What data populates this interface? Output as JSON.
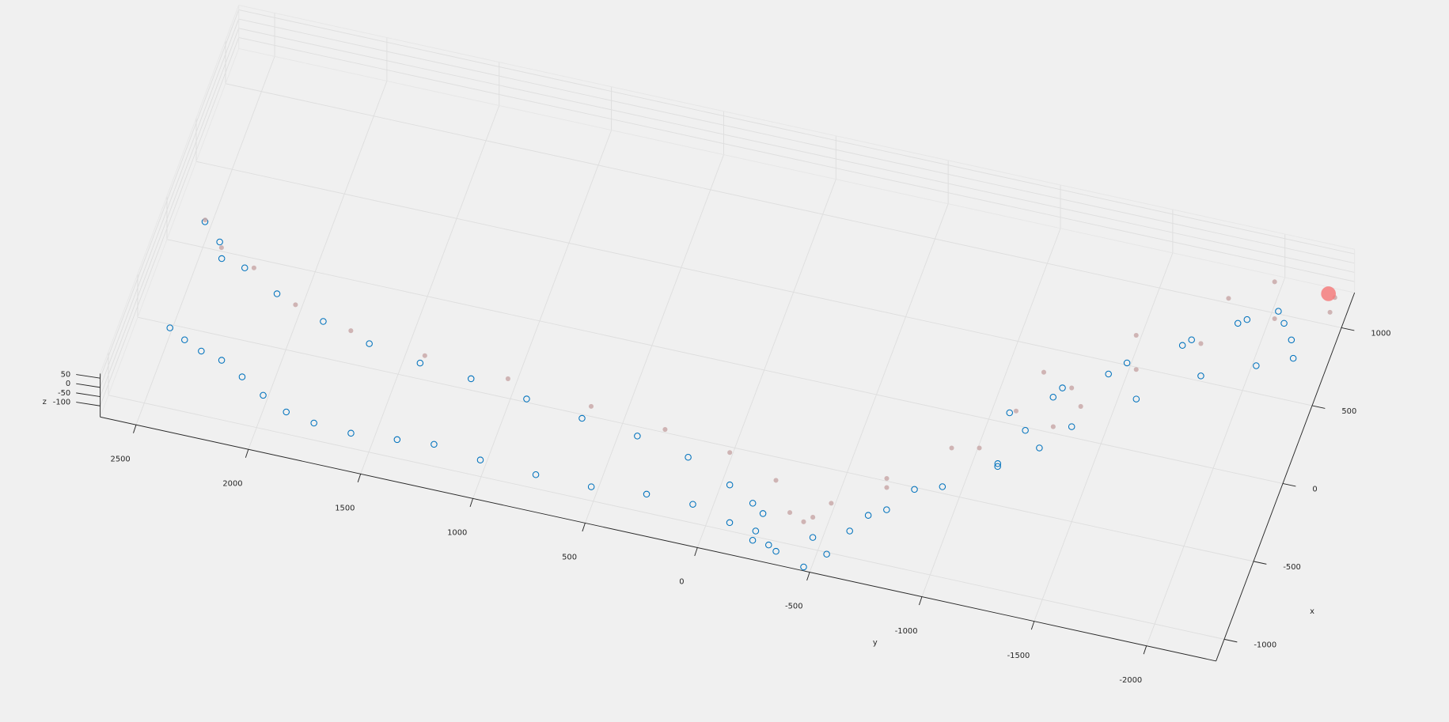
{
  "chart_data": {
    "type": "scatter3",
    "xlabel": "x",
    "ylabel": "y",
    "zlabel": "z",
    "xlim": [
      -1140,
      1225
    ],
    "ylim": [
      -2310,
      2660
    ],
    "zlim": [
      -160,
      75
    ],
    "xticks": [
      -1000,
      -500,
      0,
      500,
      1000
    ],
    "yticks": [
      -2000,
      -1500,
      -1000,
      -500,
      0,
      500,
      1000,
      1500,
      2000,
      2500
    ],
    "zticks": [
      -100,
      -50,
      0,
      50
    ],
    "grid": true,
    "series": [
      {
        "color": "#0072bd",
        "filled": false,
        "marker_size": 3.2,
        "x": [
          -532,
          -584,
          -629,
          -657,
          -729,
          -811,
          -880,
          -910,
          -922,
          -900,
          -880,
          -913,
          -928,
          -928,
          -900,
          -900,
          -961,
          -1036,
          -1071,
          -1128,
          -1022,
          -855,
          -681,
          -472,
          -263,
          52,
          300,
          521,
          653,
          745,
          852,
          941,
          1005,
          881,
          678,
          412,
          203,
          54,
          -30,
          -116,
          -280,
          -524,
          -738,
          -941,
          -1043,
          -977,
          -864,
          143,
          42,
          -54,
          -79,
          -191,
          -295,
          -367,
          -416,
          -443,
          -491,
          -534,
          -567,
          -627,
          -737,
          -816,
          270,
          502,
          723,
          915
        ],
        "y": [
          2508,
          2429,
          2343,
          2245,
          2135,
          2020,
          1899,
          1768,
          1600,
          1400,
          1241,
          1026,
          775,
          528,
          289,
          83,
          -97,
          -219,
          -332,
          -470,
          -545,
          -604,
          -723,
          -917,
          -1109,
          -1356,
          -1579,
          -1809,
          -2021,
          -2162,
          -2126,
          -2070,
          -2028,
          -1880,
          -1686,
          -1426,
          -1234,
          -1079,
          -1171,
          -1256,
          -1113,
          -806,
          -656,
          -462,
          -292,
          -217,
          -220,
          2528,
          2436,
          2402,
          2293,
          2120,
          1887,
          1663,
          1424,
          1190,
          930,
          672,
          417,
          175,
          -39,
          -162,
          -1258,
          -1485,
          -1715,
          -1912
        ],
        "z": [
          -150,
          -150,
          -150,
          -150,
          -150,
          -150,
          -150,
          -150,
          -150,
          -150,
          -150,
          -150,
          -150,
          -150,
          -150,
          -150,
          -150,
          -150,
          -150,
          -150,
          -150,
          -150,
          -150,
          -150,
          -150,
          -150,
          -150,
          -150,
          -150,
          -150,
          -150,
          -150,
          -150,
          -150,
          -150,
          -150,
          -150,
          -150,
          -150,
          -150,
          -150,
          -150,
          -150,
          -150,
          -150,
          -150,
          -150,
          -150,
          -150,
          -150,
          -150,
          -150,
          -150,
          -150,
          -150,
          -150,
          -150,
          -150,
          -150,
          -150,
          -150,
          -150,
          -150,
          -150,
          -150,
          -150
        ]
      },
      {
        "color": "#c9a9a9",
        "filled": true,
        "marker_size": 2.6,
        "x": [
          154,
          11,
          -67,
          -232,
          -314,
          -366,
          -395,
          -451,
          -492,
          -545,
          -650,
          -823,
          -860,
          -714,
          -495,
          -230,
          73,
          282,
          184,
          28,
          -194,
          -549,
          -821,
          475,
          713,
          956,
          1066,
          1160,
          339,
          678,
          1017,
          1175
        ],
        "y": [
          2530,
          2420,
          2255,
          2027,
          1759,
          1416,
          1038,
          653,
          313,
          11,
          -222,
          -329,
          -400,
          -485,
          -675,
          -895,
          -1103,
          -1296,
          -1362,
          -1280,
          -1009,
          -689,
          -431,
          -1533,
          -1759,
          -2024,
          -2242,
          -2239,
          -1157,
          -1480,
          -1803,
          -1967
        ],
        "z": [
          -150,
          -150,
          -150,
          -150,
          -150,
          -150,
          -150,
          -150,
          -150,
          -150,
          -150,
          -150,
          -150,
          -150,
          -150,
          -150,
          -150,
          -150,
          -150,
          -150,
          -150,
          -150,
          -150,
          -150,
          -150,
          -150,
          -150,
          -150,
          -150,
          -150,
          -150,
          -150
        ]
      },
      {
        "color": "#f47c7c",
        "filled": true,
        "marker_size": 8,
        "x": [
          1174
        ],
        "y": [
          -2207
        ],
        "z": [
          -150
        ]
      }
    ]
  }
}
